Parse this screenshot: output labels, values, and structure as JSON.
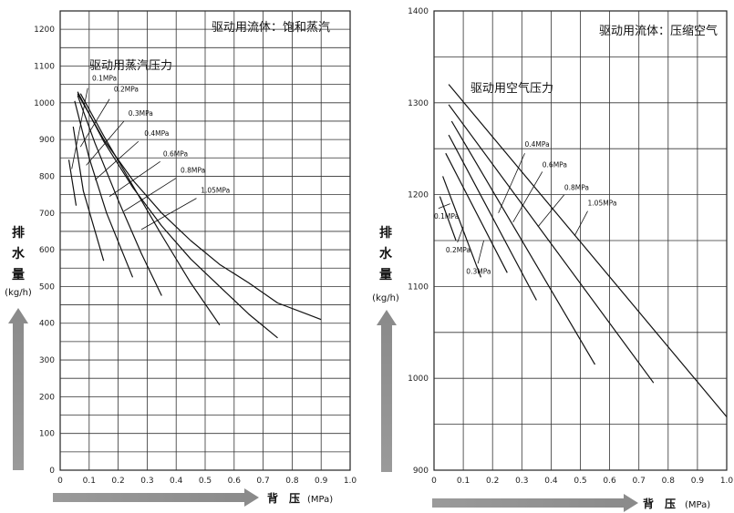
{
  "chart_data": [
    {
      "type": "line",
      "title": "驱动用流体：饱和蒸汽",
      "subtitle": "驱动用蒸汽压力",
      "ylabel_chars": [
        "排",
        "水",
        "量"
      ],
      "yunit": "(kg/h)",
      "xlabel": "背　压",
      "xunit": "(MPa)",
      "xlim": [
        0,
        1.0
      ],
      "ylim": [
        0,
        1250
      ],
      "xticks": [
        "0",
        "0.1",
        "0.2",
        "0.3",
        "0.4",
        "0.5",
        "0.6",
        "0.7",
        "0.8",
        "0.9",
        "1.0"
      ],
      "yticks": [
        "0",
        "100",
        "200",
        "300",
        "400",
        "500",
        "600",
        "700",
        "800",
        "900",
        "1000",
        "1100",
        "1200"
      ],
      "grid": true,
      "series": [
        {
          "name": "0.1MPa",
          "x": [
            0.03,
            0.055
          ],
          "y": [
            845,
            720
          ],
          "label_at": [
            0.11,
            1060
          ],
          "leader": [
            0.095,
            1040,
            0.04,
            820
          ]
        },
        {
          "name": "0.2MPa",
          "x": [
            0.045,
            0.08,
            0.15
          ],
          "y": [
            935,
            760,
            570
          ],
          "label_at": [
            0.185,
            1030
          ],
          "leader": [
            0.17,
            1010,
            0.07,
            880
          ]
        },
        {
          "name": "0.3MPa",
          "x": [
            0.05,
            0.1,
            0.16,
            0.25
          ],
          "y": [
            1005,
            850,
            700,
            525
          ],
          "label_at": [
            0.235,
            965
          ],
          "leader": [
            0.22,
            950,
            0.09,
            830
          ]
        },
        {
          "name": "0.4MPa",
          "x": [
            0.06,
            0.12,
            0.2,
            0.28,
            0.35
          ],
          "y": [
            1020,
            890,
            735,
            590,
            475
          ],
          "label_at": [
            0.29,
            910
          ],
          "leader": [
            0.27,
            895,
            0.12,
            790
          ]
        },
        {
          "name": "0.6MPa",
          "x": [
            0.07,
            0.15,
            0.25,
            0.35,
            0.45,
            0.55
          ],
          "y": [
            1025,
            910,
            775,
            640,
            510,
            395
          ],
          "label_at": [
            0.355,
            855
          ],
          "leader": [
            0.345,
            840,
            0.17,
            745
          ]
        },
        {
          "name": "0.8MPa",
          "x": [
            0.06,
            0.15,
            0.25,
            0.35,
            0.45,
            0.55,
            0.65,
            0.75
          ],
          "y": [
            1030,
            895,
            770,
            665,
            575,
            500,
            425,
            360
          ],
          "label_at": [
            0.415,
            810
          ],
          "leader": [
            0.4,
            795,
            0.22,
            705
          ]
        },
        {
          "name": "1.05MPa",
          "x": [
            0.06,
            0.15,
            0.25,
            0.35,
            0.45,
            0.55,
            0.65,
            0.75,
            0.85,
            0.9
          ],
          "y": [
            1025,
            900,
            790,
            700,
            625,
            560,
            510,
            455,
            425,
            410
          ],
          "label_at": [
            0.485,
            755
          ],
          "leader": [
            0.47,
            740,
            0.28,
            655
          ]
        }
      ]
    },
    {
      "type": "line",
      "title": "驱动用流体：压缩空气",
      "subtitle": "驱动用空气压力",
      "ylabel_chars": [
        "排",
        "水",
        "量"
      ],
      "yunit": "(kg/h)",
      "xlabel": "背　压",
      "xunit": "(MPa)",
      "xlim": [
        0,
        1.0
      ],
      "ylim": [
        900,
        1400
      ],
      "xticks": [
        "0",
        "0.1",
        "0.2",
        "0.3",
        "0.4",
        "0.5",
        "0.6",
        "0.7",
        "0.8",
        "0.9",
        "1.0"
      ],
      "yticks": [
        "900",
        "1000",
        "1100",
        "1200",
        "1300",
        "1400"
      ],
      "grid": true,
      "series": [
        {
          "name": "0.1MPa",
          "x": [
            0.02,
            0.075
          ],
          "y": [
            1198,
            1150
          ],
          "label_at": [
            0.0,
            1174
          ],
          "leader": [
            0.015,
            1185,
            0.055,
            1190
          ]
        },
        {
          "name": "0.2MPa",
          "x": [
            0.03,
            0.16
          ],
          "y": [
            1220,
            1110
          ],
          "label_at": [
            0.04,
            1137
          ],
          "leader": [
            0.08,
            1148,
            0.1,
            1165
          ]
        },
        {
          "name": "0.3MPa",
          "x": [
            0.04,
            0.25
          ],
          "y": [
            1245,
            1115
          ],
          "label_at": [
            0.11,
            1114
          ],
          "leader": [
            0.15,
            1125,
            0.17,
            1150
          ]
        },
        {
          "name": "0.4MPa",
          "x": [
            0.05,
            0.35
          ],
          "y": [
            1265,
            1085
          ],
          "label_at": [
            0.31,
            1252
          ],
          "leader": [
            0.31,
            1245,
            0.22,
            1180
          ]
        },
        {
          "name": "0.6MPa",
          "x": [
            0.06,
            0.55
          ],
          "y": [
            1280,
            1015
          ],
          "label_at": [
            0.37,
            1230
          ],
          "leader": [
            0.37,
            1225,
            0.27,
            1170
          ]
        },
        {
          "name": "0.8MPa",
          "x": [
            0.05,
            0.75
          ],
          "y": [
            1298,
            995
          ],
          "label_at": [
            0.445,
            1205
          ],
          "leader": [
            0.445,
            1200,
            0.355,
            1165
          ]
        },
        {
          "name": "1.05MPa",
          "x": [
            0.05,
            1.0
          ],
          "y": [
            1320,
            958
          ],
          "label_at": [
            0.525,
            1188
          ],
          "leader": [
            0.525,
            1182,
            0.48,
            1155
          ]
        }
      ]
    }
  ]
}
